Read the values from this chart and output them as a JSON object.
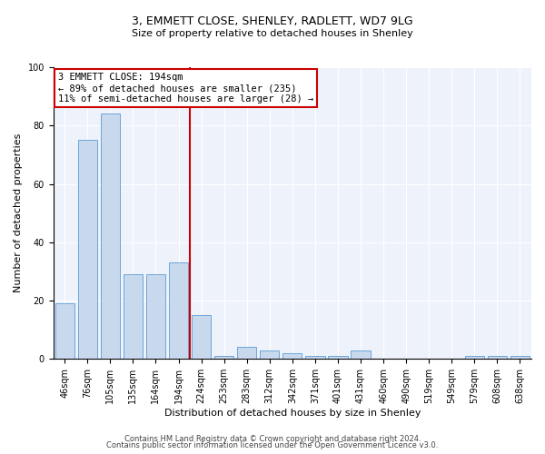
{
  "title1": "3, EMMETT CLOSE, SHENLEY, RADLETT, WD7 9LG",
  "title2": "Size of property relative to detached houses in Shenley",
  "xlabel": "Distribution of detached houses by size in Shenley",
  "ylabel": "Number of detached properties",
  "categories": [
    "46sqm",
    "76sqm",
    "105sqm",
    "135sqm",
    "164sqm",
    "194sqm",
    "224sqm",
    "253sqm",
    "283sqm",
    "312sqm",
    "342sqm",
    "371sqm",
    "401sqm",
    "431sqm",
    "460sqm",
    "490sqm",
    "519sqm",
    "549sqm",
    "579sqm",
    "608sqm",
    "638sqm"
  ],
  "values": [
    19,
    75,
    84,
    29,
    29,
    33,
    15,
    1,
    4,
    3,
    2,
    1,
    1,
    3,
    0,
    0,
    0,
    0,
    1,
    1,
    1
  ],
  "bar_color": "#c8d9ee",
  "bar_edge_color": "#5b9bd5",
  "red_line_x": 5.5,
  "annotation_text": "3 EMMETT CLOSE: 194sqm\n← 89% of detached houses are smaller (235)\n11% of semi-detached houses are larger (28) →",
  "annotation_box_color": "#ffffff",
  "annotation_border_color": "#cc0000",
  "red_line_color": "#cc0000",
  "footer1": "Contains HM Land Registry data © Crown copyright and database right 2024.",
  "footer2": "Contains public sector information licensed under the Open Government Licence v3.0.",
  "ylim": [
    0,
    100
  ],
  "background_color": "#eef2fb",
  "grid_color": "#ffffff",
  "title1_fontsize": 9,
  "title2_fontsize": 8,
  "xlabel_fontsize": 8,
  "ylabel_fontsize": 8,
  "tick_fontsize": 7,
  "footer_fontsize": 6
}
